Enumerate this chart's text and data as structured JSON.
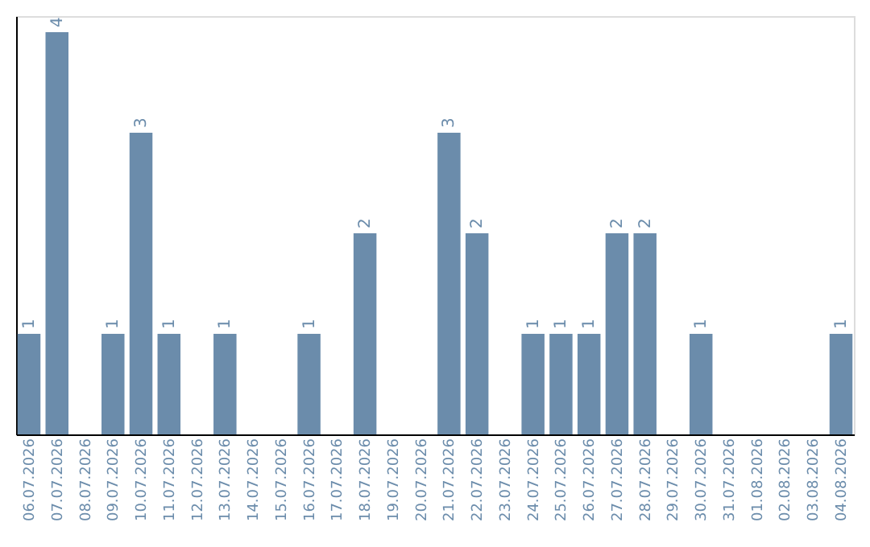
{
  "chart_data": {
    "type": "bar",
    "categories": [
      "06.07.2026",
      "07.07.2026",
      "08.07.2026",
      "09.07.2026",
      "10.07.2026",
      "11.07.2026",
      "12.07.2026",
      "13.07.2026",
      "14.07.2026",
      "15.07.2026",
      "16.07.2026",
      "17.07.2026",
      "18.07.2026",
      "19.07.2026",
      "20.07.2026",
      "21.07.2026",
      "22.07.2026",
      "23.07.2026",
      "24.07.2026",
      "25.07.2026",
      "26.07.2026",
      "27.07.2026",
      "28.07.2026",
      "29.07.2026",
      "30.07.2026",
      "31.07.2026",
      "01.08.2026",
      "02.08.2026",
      "03.08.2026",
      "04.08.2026"
    ],
    "values": [
      1,
      4,
      0,
      1,
      3,
      1,
      0,
      1,
      0,
      0,
      1,
      0,
      2,
      0,
      0,
      3,
      2,
      0,
      1,
      1,
      1,
      2,
      2,
      0,
      1,
      0,
      0,
      0,
      0,
      1
    ],
    "value_labels": [
      "1",
      "4",
      null,
      "1",
      "3",
      "1",
      null,
      "1",
      null,
      null,
      "1",
      null,
      "2",
      null,
      null,
      "3",
      "2",
      null,
      "1",
      "1",
      "1",
      "2",
      "2",
      null,
      "1",
      null,
      null,
      null,
      null,
      "1"
    ],
    "color": "#6b8cab",
    "ylim": [
      0,
      4.16
    ],
    "tick_labels": "x",
    "grid": false
  }
}
